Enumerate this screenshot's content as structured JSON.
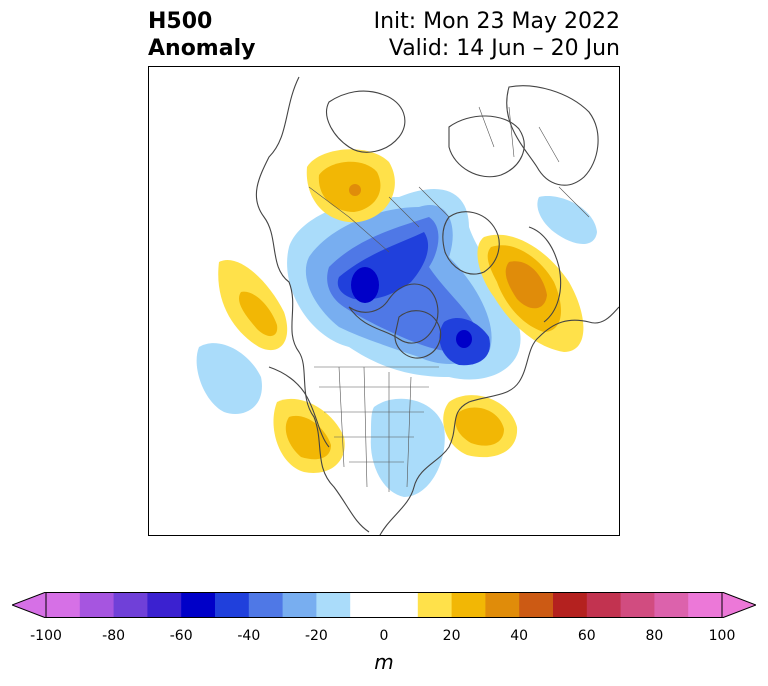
{
  "title": {
    "left_line1": "H500",
    "left_line2": "Anomaly",
    "right_line1": "Init: Mon 23 May 2022",
    "right_line2": "Valid: 14 Jun – 20 Jun"
  },
  "colorbar": {
    "unit": "m",
    "tick_labels": [
      "-100",
      "-80",
      "-60",
      "-40",
      "-20",
      "0",
      "20",
      "40",
      "60",
      "80",
      "100"
    ],
    "colors": [
      "#d670e6",
      "#a655e0",
      "#7040d8",
      "#3b21d0",
      "#0000c8",
      "#2040dc",
      "#4f78e6",
      "#78aef0",
      "#aadcfa",
      "#ffffff",
      "#ffffff",
      "#ffe14a",
      "#f2b705",
      "#e08c0a",
      "#cc5a14",
      "#b4211f",
      "#c23350",
      "#d14c80",
      "#dc62ac",
      "#ec78d8"
    ],
    "extend_low_color": "#d670e6",
    "extend_high_color": "#ec78d8"
  },
  "map": {
    "projection": "north-polar-stereographic",
    "features": [
      "coastlines",
      "country-borders",
      "state-borders"
    ]
  }
}
